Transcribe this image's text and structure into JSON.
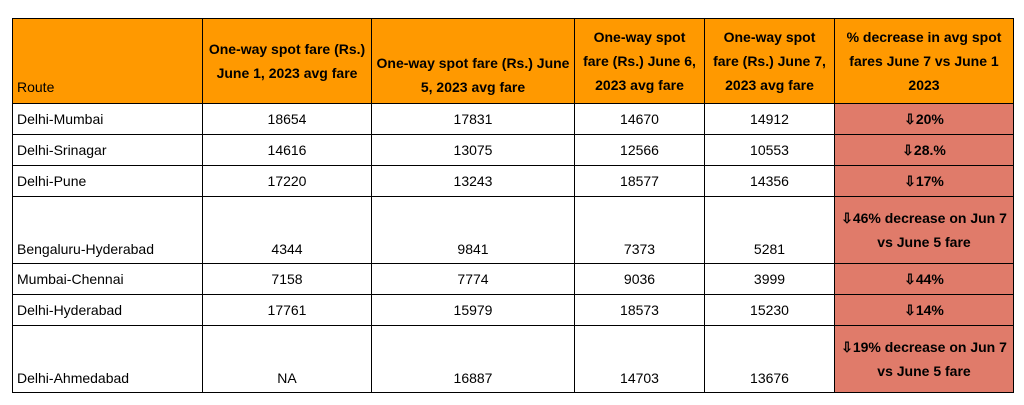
{
  "table": {
    "headers": [
      "Route",
      "One-way spot fare (Rs.) June 1, 2023 avg fare",
      "One-way spot fare (Rs.) June 5, 2023 avg fare",
      "One-way spot fare (Rs.) June 6, 2023 avg fare",
      "One-way spot fare (Rs.) June 7, 2023 avg fare",
      "% decrease in avg spot fares June 7 vs June 1 2023"
    ],
    "rows": [
      [
        "Delhi-Mumbai",
        "18654",
        "17831",
        "14670",
        "14912",
        "⇩20%"
      ],
      [
        "Delhi-Srinagar",
        "14616",
        "13075",
        "12566",
        "10553",
        "⇩28.%"
      ],
      [
        "Delhi-Pune",
        "17220",
        "13243",
        "18577",
        "14356",
        "⇩17%"
      ],
      [
        "Bengaluru-Hyderabad",
        "4344",
        "9841",
        "7373",
        "5281",
        "⇩46% decrease on Jun 7 vs June 5 fare"
      ],
      [
        "Mumbai-Chennai",
        "7158",
        "7774",
        "9036",
        "3999",
        "⇩44%"
      ],
      [
        "Delhi-Hyderabad",
        "17761",
        "15979",
        "18573",
        "15230",
        "⇩14%"
      ],
      [
        "Delhi-Ahmedabad",
        "NA",
        "16887",
        "14703",
        "13676",
        "⇩19% decrease on Jun 7 vs June 5 fare"
      ]
    ]
  },
  "colors": {
    "header_bg": "#ff9900",
    "decrease_bg": "#e07b6a"
  }
}
